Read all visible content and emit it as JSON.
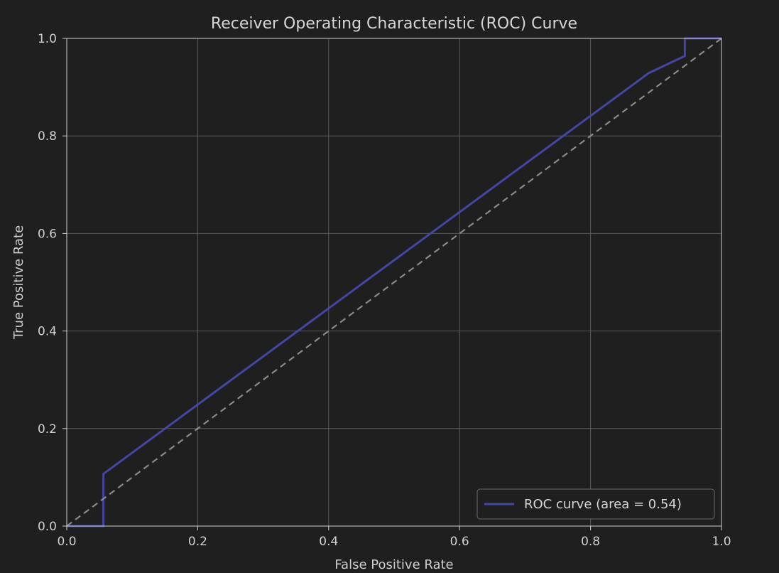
{
  "chart_data": {
    "type": "line",
    "title": "Receiver Operating Characteristic (ROC) Curve",
    "xlabel": "False Positive Rate",
    "ylabel": "True Positive Rate",
    "xlim": [
      0.0,
      1.0
    ],
    "ylim": [
      0.0,
      1.0
    ],
    "x_ticks": [
      "0.0",
      "0.2",
      "0.4",
      "0.6",
      "0.8",
      "1.0"
    ],
    "y_ticks": [
      "0.0",
      "0.2",
      "0.4",
      "0.6",
      "0.8",
      "1.0"
    ],
    "grid": true,
    "legend_position": "lower-right",
    "series": [
      {
        "name": "ROC curve (area = 0.54)",
        "color": "#4446a6",
        "style": "solid",
        "x": [
          0.0,
          0.056,
          0.056,
          0.889,
          0.944,
          0.944,
          1.0
        ],
        "y": [
          0.0,
          0.0,
          0.107,
          0.929,
          0.964,
          1.0,
          1.0
        ]
      },
      {
        "color": "#8a8a8a",
        "style": "dashed",
        "x": [
          0.0,
          1.0
        ],
        "y": [
          0.0,
          1.0
        ]
      }
    ],
    "colors": {
      "background": "#1f1f1f",
      "axes_edge": "#d0d0d0",
      "grid": "#5a5a5a",
      "text": "#d0d0d0",
      "legend_bg": "#1f1f1f",
      "legend_edge": "#6a6a6a"
    }
  }
}
